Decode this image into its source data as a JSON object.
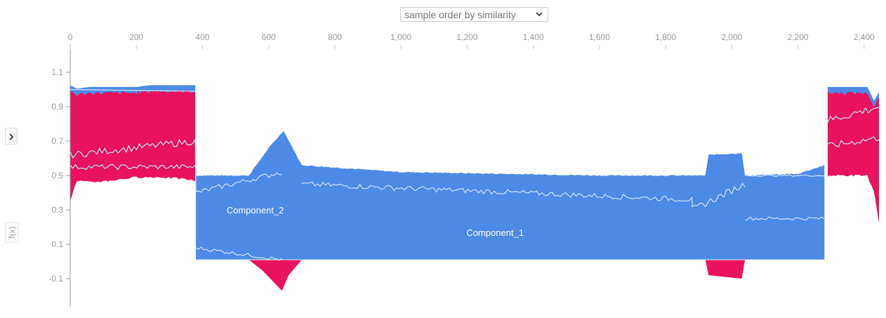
{
  "controls": {
    "order_select": {
      "selected": "sample order by similarity"
    }
  },
  "chart_data": {
    "type": "area",
    "ylabel": "f(x)",
    "base_value": 0.5,
    "xlim": [
      0,
      2445
    ],
    "ylim": [
      -0.23,
      1.18
    ],
    "x_ticks": [
      {
        "value": 0,
        "label": "0"
      },
      {
        "value": 200,
        "label": "200"
      },
      {
        "value": 400,
        "label": "400"
      },
      {
        "value": 600,
        "label": "600"
      },
      {
        "value": 800,
        "label": "800"
      },
      {
        "value": 1000,
        "label": "1,000"
      },
      {
        "value": 1200,
        "label": "1,200"
      },
      {
        "value": 1400,
        "label": "1,400"
      },
      {
        "value": 1600,
        "label": "1,600"
      },
      {
        "value": 1800,
        "label": "1,800"
      },
      {
        "value": 2000,
        "label": "2,000"
      },
      {
        "value": 2200,
        "label": "2,200"
      },
      {
        "value": 2400,
        "label": "2,400"
      }
    ],
    "y_ticks": [
      {
        "value": 1.1,
        "label": "1.1"
      },
      {
        "value": 0.9,
        "label": "0.9"
      },
      {
        "value": 0.7,
        "label": "0.7"
      },
      {
        "value": 0.5,
        "label": "0.5"
      },
      {
        "value": 0.3,
        "label": "0.3"
      },
      {
        "value": 0.1,
        "label": "0.1"
      },
      {
        "value": -0.1,
        "label": "-0.1"
      }
    ],
    "colors": {
      "positive": "#ff0052",
      "negative": "#4d8ae5",
      "positive_fill": "#e8125e",
      "light_line": "#d0e2f8",
      "axis": "#999999"
    },
    "annotations": [
      {
        "text": "Component_2",
        "x": 570,
        "y": 0.3
      },
      {
        "text": "Component_1",
        "x": 1295,
        "y": 0.17
      }
    ],
    "positive_band": [
      {
        "x": 0,
        "low": 0.35,
        "high": 0.99
      },
      {
        "x": 20,
        "low": 0.47,
        "high": 0.97
      },
      {
        "x": 60,
        "low": 0.46,
        "high": 0.98
      },
      {
        "x": 120,
        "low": 0.47,
        "high": 0.98
      },
      {
        "x": 200,
        "low": 0.49,
        "high": 0.98
      },
      {
        "x": 240,
        "low": 0.49,
        "high": 0.99
      },
      {
        "x": 280,
        "low": 0.49,
        "high": 0.99
      },
      {
        "x": 340,
        "low": 0.48,
        "high": 0.99
      },
      {
        "x": 378,
        "low": 0.47,
        "high": 0.99
      },
      {
        "x": 2290,
        "low": 0.5,
        "high": 0.98
      },
      {
        "x": 2320,
        "low": 0.5,
        "high": 0.98
      },
      {
        "x": 2380,
        "low": 0.5,
        "high": 0.98
      },
      {
        "x": 2410,
        "low": 0.5,
        "high": 0.98
      },
      {
        "x": 2430,
        "low": 0.4,
        "high": 0.9
      },
      {
        "x": 2445,
        "low": 0.22,
        "high": 0.95
      }
    ],
    "negative_band": [
      {
        "x": 380,
        "low": 0.01,
        "high": 0.5
      },
      {
        "x": 540,
        "low": 0.01,
        "high": 0.5
      },
      {
        "x": 600,
        "low": 0.01,
        "high": 0.66
      },
      {
        "x": 645,
        "low": 0.01,
        "high": 0.76
      },
      {
        "x": 700,
        "low": 0.01,
        "high": 0.56
      },
      {
        "x": 1000,
        "low": 0.01,
        "high": 0.52
      },
      {
        "x": 1300,
        "low": 0.01,
        "high": 0.51
      },
      {
        "x": 1600,
        "low": 0.01,
        "high": 0.5
      },
      {
        "x": 1920,
        "low": 0.01,
        "high": 0.5
      },
      {
        "x": 1930,
        "low": 0.01,
        "high": 0.62
      },
      {
        "x": 2030,
        "low": 0.01,
        "high": 0.63
      },
      {
        "x": 2040,
        "low": 0.01,
        "high": 0.5
      },
      {
        "x": 2200,
        "low": 0.01,
        "high": 0.51
      },
      {
        "x": 2280,
        "low": 0.01,
        "high": 0.56
      }
    ],
    "negative_bottom_pos": [
      {
        "x": 540,
        "v": 0.01
      },
      {
        "x": 580,
        "v": -0.05
      },
      {
        "x": 620,
        "v": -0.13
      },
      {
        "x": 640,
        "v": -0.17
      },
      {
        "x": 660,
        "v": -0.08
      },
      {
        "x": 700,
        "v": 0.01
      },
      {
        "x": 1920,
        "v": 0.01
      },
      {
        "x": 1930,
        "v": -0.08
      },
      {
        "x": 2030,
        "v": -0.1
      },
      {
        "x": 2040,
        "v": 0.01
      }
    ]
  }
}
